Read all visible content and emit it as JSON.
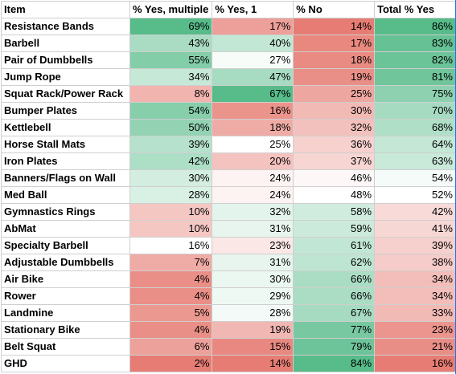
{
  "headers": [
    "Item",
    "% Yes, multiple",
    "% Yes, 1",
    "% No",
    "Total % Yes"
  ],
  "colors": {
    "good": "#57bb8a",
    "neutral": "#ffffff",
    "bad": "#e67c73"
  },
  "rows": [
    [
      "Resistance Bands",
      "69%",
      "17%",
      "14%",
      "86%"
    ],
    [
      "Barbell",
      "43%",
      "40%",
      "17%",
      "83%"
    ],
    [
      "Pair of Dumbbells",
      "55%",
      "27%",
      "18%",
      "82%"
    ],
    [
      "Jump Rope",
      "34%",
      "47%",
      "19%",
      "81%"
    ],
    [
      "Squat Rack/Power Rack",
      "8%",
      "67%",
      "25%",
      "75%"
    ],
    [
      "Bumper Plates",
      "54%",
      "16%",
      "30%",
      "70%"
    ],
    [
      "Kettlebell",
      "50%",
      "18%",
      "32%",
      "68%"
    ],
    [
      "Horse Stall Mats",
      "39%",
      "25%",
      "36%",
      "64%"
    ],
    [
      "Iron Plates",
      "42%",
      "20%",
      "37%",
      "63%"
    ],
    [
      "Banners/Flags on Wall",
      "30%",
      "24%",
      "46%",
      "54%"
    ],
    [
      "Med Ball",
      "28%",
      "24%",
      "48%",
      "52%"
    ],
    [
      "Gymnastics Rings",
      "10%",
      "32%",
      "58%",
      "42%"
    ],
    [
      "AbMat",
      "10%",
      "31%",
      "59%",
      "41%"
    ],
    [
      "Specialty Barbell",
      "16%",
      "23%",
      "61%",
      "39%"
    ],
    [
      "Adjustable Dumbbells",
      "7%",
      "31%",
      "62%",
      "38%"
    ],
    [
      "Air Bike",
      "4%",
      "30%",
      "66%",
      "34%"
    ],
    [
      "Rower",
      "4%",
      "29%",
      "66%",
      "34%"
    ],
    [
      "Landmine",
      "5%",
      "28%",
      "67%",
      "33%"
    ],
    [
      "Stationary Bike",
      "4%",
      "19%",
      "77%",
      "23%"
    ],
    [
      "Belt Squat",
      "6%",
      "15%",
      "79%",
      "21%"
    ],
    [
      "GHD",
      "2%",
      "14%",
      "84%",
      "16%"
    ]
  ]
}
